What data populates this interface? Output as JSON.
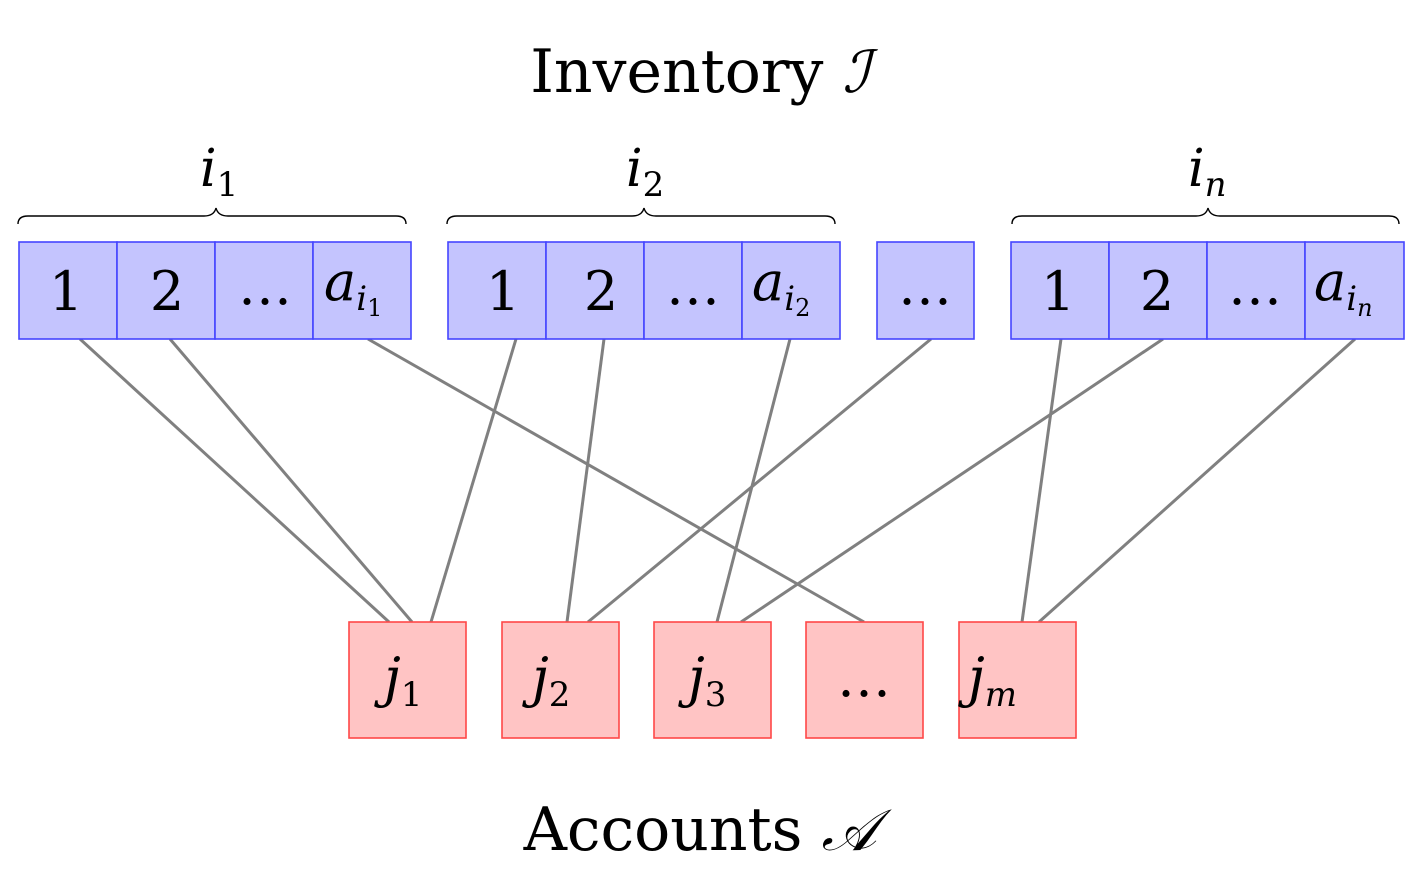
{
  "title": {
    "word": "Inventory",
    "symbol": "ℐ"
  },
  "footer": {
    "word": "Accounts",
    "symbol": "𝒜"
  },
  "inventory_groups": [
    {
      "label": {
        "base": "i",
        "sub": "1"
      },
      "cells": [
        {
          "text": "1"
        },
        {
          "text": "2"
        },
        {
          "text": "…"
        },
        {
          "base": "a",
          "sub": "i",
          "subsub": "1"
        }
      ]
    },
    {
      "label": {
        "base": "i",
        "sub": "2"
      },
      "cells": [
        {
          "text": "1"
        },
        {
          "text": "2"
        },
        {
          "text": "…"
        },
        {
          "base": "a",
          "sub": "i",
          "subsub": "2"
        }
      ]
    },
    {
      "label": {
        "base": "i",
        "sub": "n"
      },
      "cells": [
        {
          "text": "1"
        },
        {
          "text": "2"
        },
        {
          "text": "…"
        },
        {
          "base": "a",
          "sub": "i",
          "subsub": "n"
        }
      ]
    }
  ],
  "inventory_gap_cell": {
    "text": "…"
  },
  "accounts": [
    {
      "base": "j",
      "sub": "1"
    },
    {
      "base": "j",
      "sub": "2"
    },
    {
      "base": "j",
      "sub": "3"
    },
    {
      "text": "…"
    },
    {
      "base": "j",
      "sub": "m"
    }
  ],
  "edges": [
    {
      "from": "g1-c1",
      "to": "acc-1"
    },
    {
      "from": "g1-c2",
      "to": "acc-1"
    },
    {
      "from": "g1-c4",
      "to": "acc-4"
    },
    {
      "from": "g2-c1",
      "to": "acc-1"
    },
    {
      "from": "g2-c2",
      "to": "acc-2"
    },
    {
      "from": "g2-c4",
      "to": "acc-3"
    },
    {
      "from": "gap",
      "to": "acc-2"
    },
    {
      "from": "g3-c1",
      "to": "acc-5"
    },
    {
      "from": "g3-c2",
      "to": "acc-3"
    },
    {
      "from": "g3-c4",
      "to": "acc-5"
    }
  ],
  "colors": {
    "inventory_fill": "#c4c4fe",
    "inventory_stroke": "#4545ff",
    "account_fill": "#ffc4c4",
    "account_stroke": "#ff4848",
    "edge": "#808080"
  }
}
